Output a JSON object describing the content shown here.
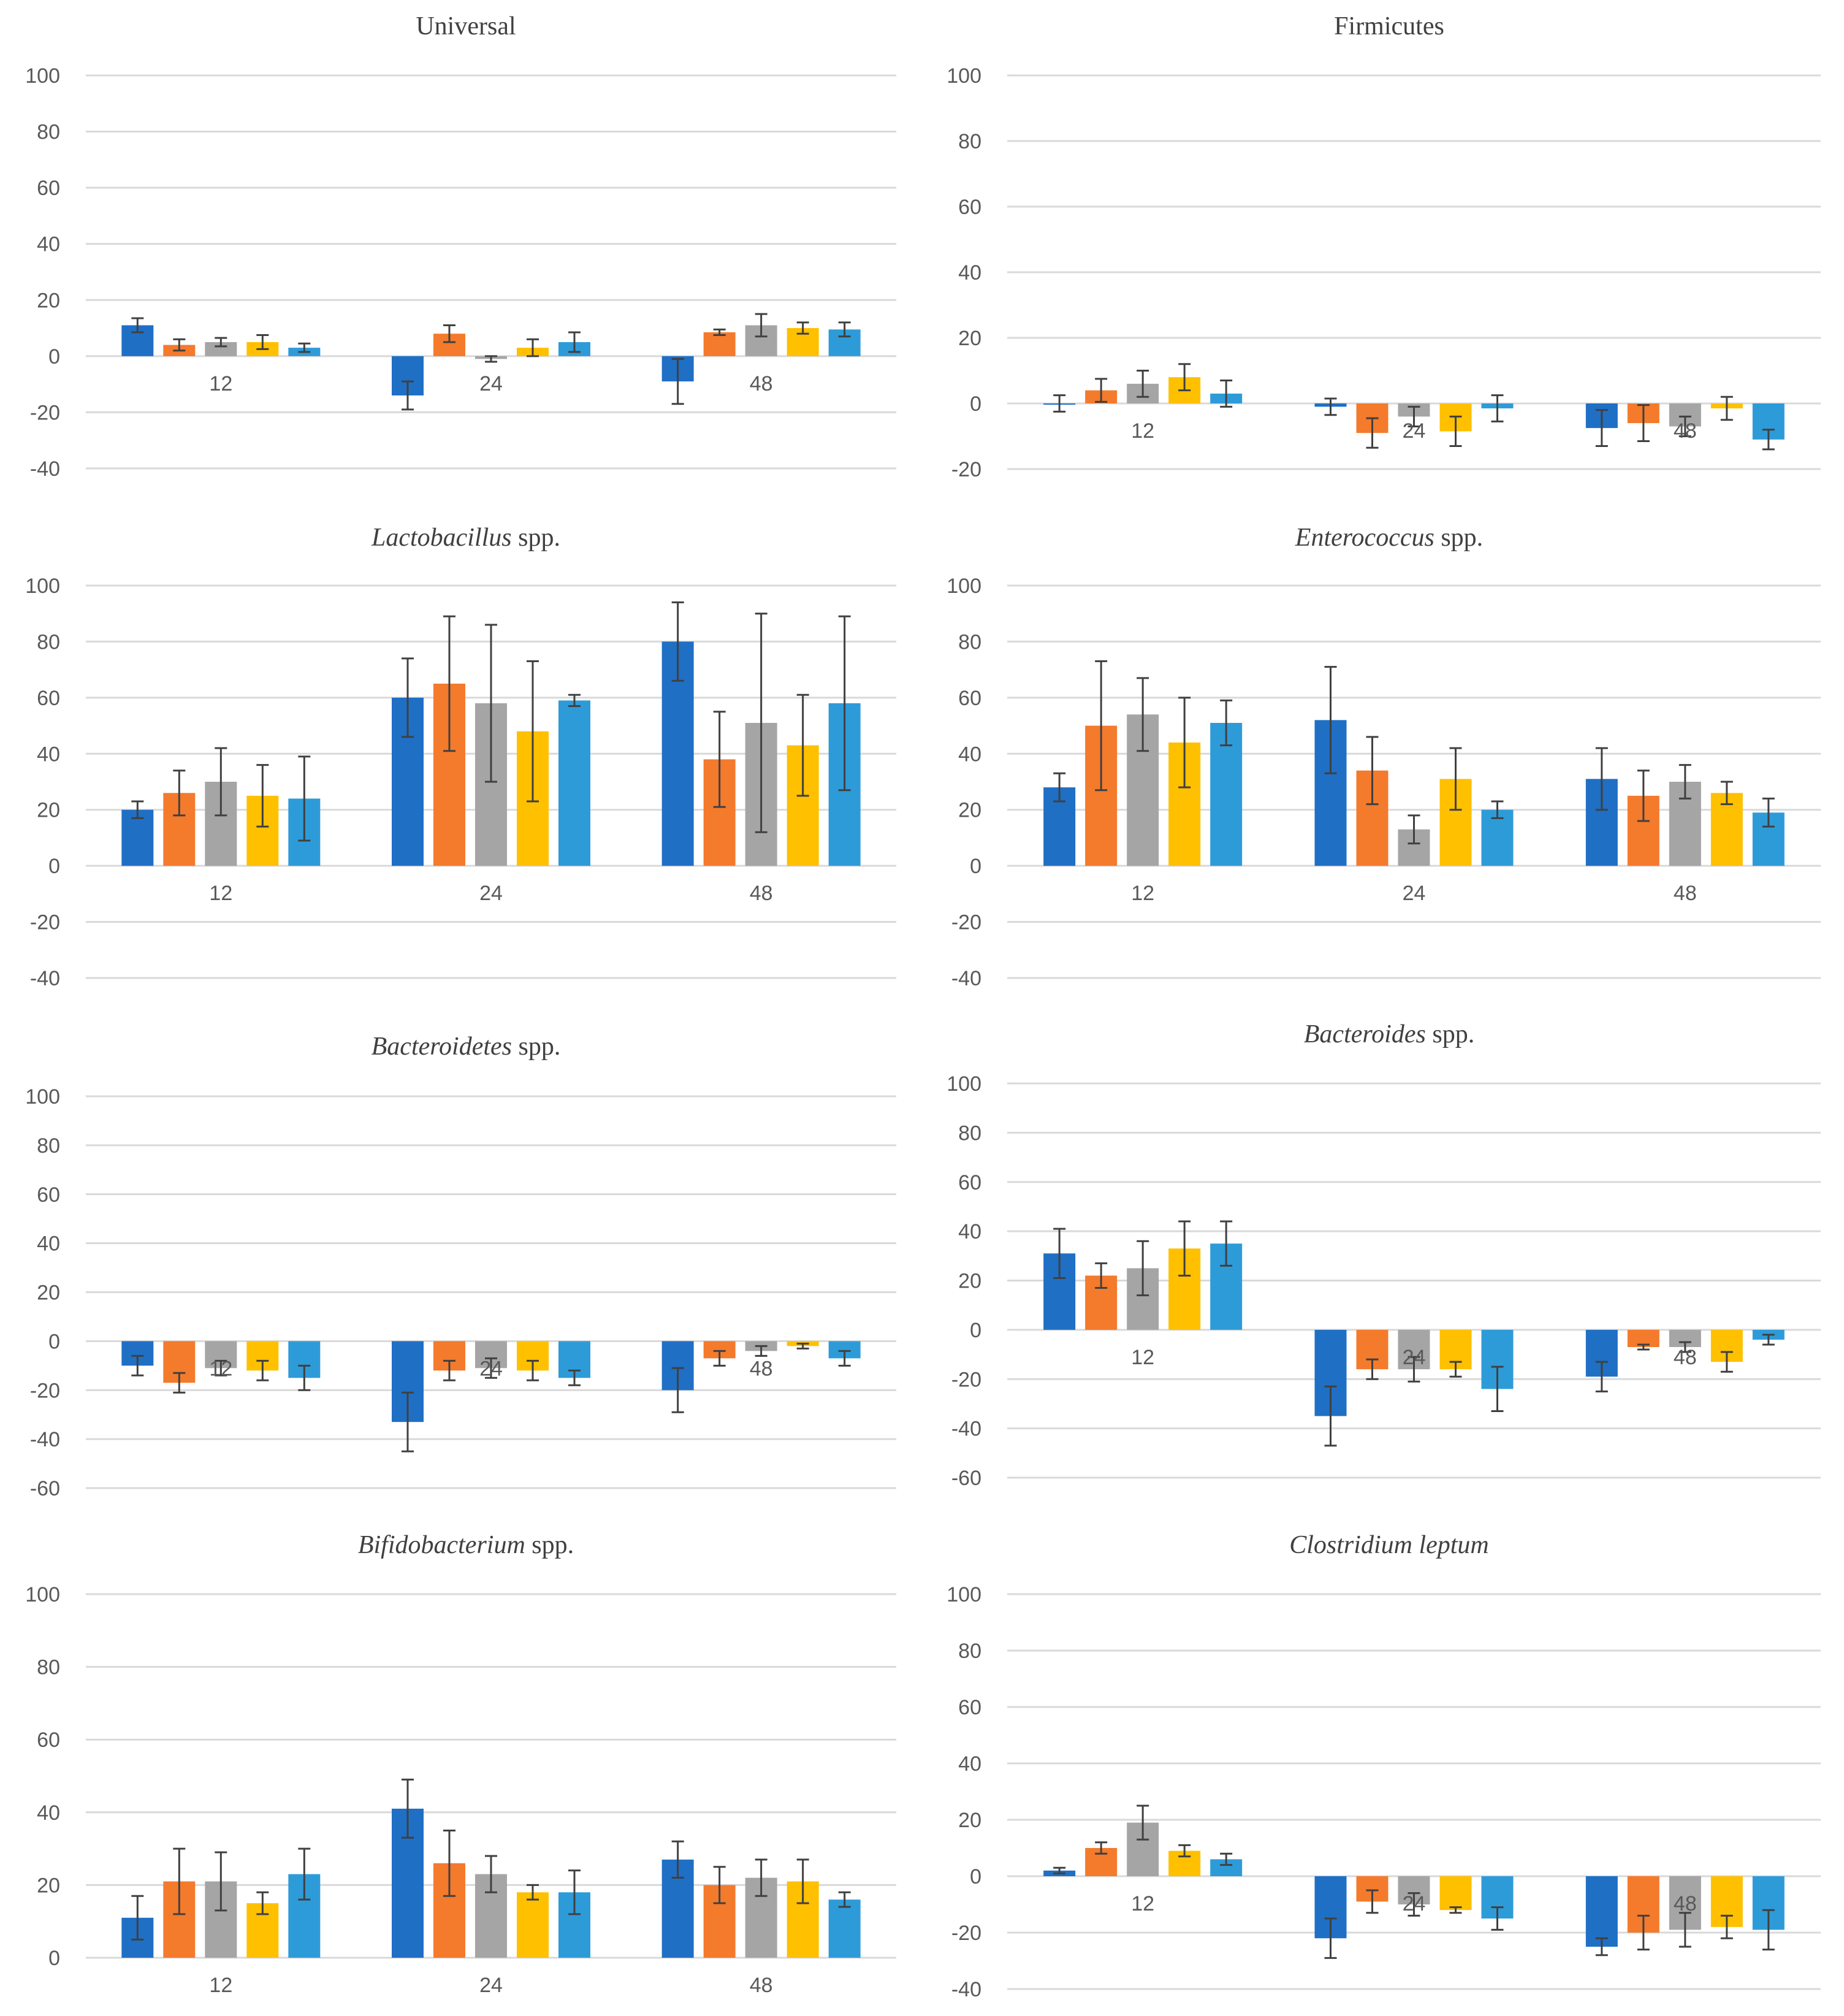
{
  "colors": [
    "#1f6fc5",
    "#f47a2c",
    "#a5a5a5",
    "#ffc000",
    "#2e9bd9"
  ],
  "chart_data": [
    {
      "type": "bar",
      "title": "Universal",
      "title_italic": "",
      "categories": [
        "12",
        "24",
        "48"
      ],
      "yticks": [
        "100",
        "80",
        "60",
        "40",
        "20",
        "0",
        "-20",
        "-40"
      ],
      "ylim": [
        -40,
        100
      ],
      "series": [
        {
          "values": [
            11,
            -14,
            -9
          ],
          "errors": [
            2.5,
            5,
            8
          ]
        },
        {
          "values": [
            4,
            8,
            8.5
          ],
          "errors": [
            2,
            3,
            1
          ]
        },
        {
          "values": [
            5,
            -1,
            11
          ],
          "errors": [
            1.5,
            1,
            4
          ]
        },
        {
          "values": [
            5,
            3,
            10
          ],
          "errors": [
            2.5,
            3,
            2
          ]
        },
        {
          "values": [
            3,
            5,
            9.5
          ],
          "errors": [
            1.5,
            3.5,
            2.5
          ]
        }
      ]
    },
    {
      "type": "bar",
      "title": "Firmicutes",
      "title_italic": "",
      "categories": [
        "12",
        "24",
        "48"
      ],
      "yticks": [
        "100",
        "80",
        "60",
        "40",
        "20",
        "0",
        "-20"
      ],
      "ylim": [
        -20,
        100
      ],
      "series": [
        {
          "values": [
            0,
            -1,
            -7.5
          ],
          "errors": [
            2.5,
            2.5,
            5.5
          ]
        },
        {
          "values": [
            4,
            -9,
            -6
          ],
          "errors": [
            3.5,
            4.5,
            5.5
          ]
        },
        {
          "values": [
            6,
            -4,
            -7
          ],
          "errors": [
            4,
            3,
            3
          ]
        },
        {
          "values": [
            8,
            -8.5,
            -1.5
          ],
          "errors": [
            4,
            4.5,
            3.5
          ]
        },
        {
          "values": [
            3,
            -1.5,
            -11
          ],
          "errors": [
            4,
            4,
            3
          ]
        }
      ]
    },
    {
      "type": "bar",
      "title": "",
      "title_italic": "Lactobacillus",
      "title_suffix": " spp.",
      "categories": [
        "12",
        "24",
        "48"
      ],
      "yticks": [
        "100",
        "80",
        "60",
        "40",
        "20",
        "0",
        "-20",
        "-40"
      ],
      "ylim": [
        -40,
        100
      ],
      "series": [
        {
          "values": [
            20,
            60,
            80
          ],
          "errors": [
            3,
            14,
            14
          ]
        },
        {
          "values": [
            26,
            65,
            38
          ],
          "errors": [
            8,
            24,
            17
          ]
        },
        {
          "values": [
            30,
            58,
            51
          ],
          "errors": [
            12,
            28,
            39
          ]
        },
        {
          "values": [
            25,
            48,
            43
          ],
          "errors": [
            11,
            25,
            18
          ]
        },
        {
          "values": [
            24,
            59,
            58
          ],
          "errors": [
            15,
            2,
            31
          ]
        }
      ]
    },
    {
      "type": "bar",
      "title": "",
      "title_italic": "Enterococcus",
      "title_suffix": " spp.",
      "categories": [
        "12",
        "24",
        "48"
      ],
      "yticks": [
        "100",
        "80",
        "60",
        "40",
        "20",
        "0",
        "-20",
        "-40"
      ],
      "ylim": [
        -40,
        100
      ],
      "series": [
        {
          "values": [
            28,
            52,
            31
          ],
          "errors": [
            5,
            19,
            11
          ]
        },
        {
          "values": [
            50,
            34,
            25
          ],
          "errors": [
            23,
            12,
            9
          ]
        },
        {
          "values": [
            54,
            13,
            30
          ],
          "errors": [
            13,
            5,
            6
          ]
        },
        {
          "values": [
            44,
            31,
            26
          ],
          "errors": [
            16,
            11,
            4
          ]
        },
        {
          "values": [
            51,
            20,
            19
          ],
          "errors": [
            8,
            3,
            5
          ]
        }
      ]
    },
    {
      "type": "bar",
      "title": "",
      "title_italic": "Bacteroidetes",
      "title_suffix": " spp.",
      "categories": [
        "12",
        "24",
        "48"
      ],
      "yticks": [
        "100",
        "80",
        "60",
        "40",
        "20",
        "0",
        "-20",
        "-40",
        "-60"
      ],
      "ylim": [
        -60,
        100
      ],
      "series": [
        {
          "values": [
            -10,
            -33,
            -20
          ],
          "errors": [
            4,
            12,
            9
          ]
        },
        {
          "values": [
            -17,
            -12,
            -7
          ],
          "errors": [
            4,
            4,
            3
          ]
        },
        {
          "values": [
            -11,
            -11,
            -4
          ],
          "errors": [
            3,
            4,
            2
          ]
        },
        {
          "values": [
            -12,
            -12,
            -2
          ],
          "errors": [
            4,
            4,
            1
          ]
        },
        {
          "values": [
            -15,
            -15,
            -7
          ],
          "errors": [
            5,
            3,
            3
          ]
        }
      ]
    },
    {
      "type": "bar",
      "title": "",
      "title_italic": "Bacteroides",
      "title_suffix": " spp.",
      "categories": [
        "12",
        "24",
        "48"
      ],
      "yticks": [
        "100",
        "80",
        "60",
        "40",
        "20",
        "0",
        "-20",
        "-40",
        "-60"
      ],
      "ylim": [
        -60,
        100
      ],
      "series": [
        {
          "values": [
            31,
            -35,
            -19
          ],
          "errors": [
            10,
            12,
            6
          ]
        },
        {
          "values": [
            22,
            -16,
            -7
          ],
          "errors": [
            5,
            4,
            1
          ]
        },
        {
          "values": [
            25,
            -16,
            -7
          ],
          "errors": [
            11,
            5,
            2
          ]
        },
        {
          "values": [
            33,
            -16,
            -13
          ],
          "errors": [
            11,
            3,
            4
          ]
        },
        {
          "values": [
            35,
            -24,
            -4
          ],
          "errors": [
            9,
            9,
            2
          ]
        }
      ]
    },
    {
      "type": "bar",
      "title": "",
      "title_italic": "Bifidobacterium",
      "title_suffix": " spp.",
      "categories": [
        "12",
        "24",
        "48"
      ],
      "yticks": [
        "100",
        "80",
        "60",
        "40",
        "20",
        "0"
      ],
      "ylim": [
        0,
        100
      ],
      "series": [
        {
          "values": [
            11,
            41,
            27
          ],
          "errors": [
            6,
            8,
            5
          ]
        },
        {
          "values": [
            21,
            26,
            20
          ],
          "errors": [
            9,
            9,
            5
          ]
        },
        {
          "values": [
            21,
            23,
            22
          ],
          "errors": [
            8,
            5,
            5
          ]
        },
        {
          "values": [
            15,
            18,
            21
          ],
          "errors": [
            3,
            2,
            6
          ]
        },
        {
          "values": [
            23,
            18,
            16
          ],
          "errors": [
            7,
            6,
            2
          ]
        }
      ]
    },
    {
      "type": "bar",
      "title": "",
      "title_italic": "Clostridium leptum",
      "title_suffix": "",
      "categories": [
        "12",
        "24",
        "48"
      ],
      "yticks": [
        "100",
        "80",
        "60",
        "40",
        "20",
        "0",
        "-20",
        "-40"
      ],
      "ylim": [
        -40,
        100
      ],
      "series": [
        {
          "values": [
            2,
            -22,
            -25
          ],
          "errors": [
            1,
            7,
            3
          ]
        },
        {
          "values": [
            10,
            -9,
            -20
          ],
          "errors": [
            2,
            4,
            6
          ]
        },
        {
          "values": [
            19,
            -10,
            -19
          ],
          "errors": [
            6,
            4,
            6
          ]
        },
        {
          "values": [
            9,
            -12,
            -18
          ],
          "errors": [
            2,
            1,
            4
          ]
        },
        {
          "values": [
            6,
            -15,
            -19
          ],
          "errors": [
            2,
            4,
            7
          ]
        }
      ]
    }
  ]
}
